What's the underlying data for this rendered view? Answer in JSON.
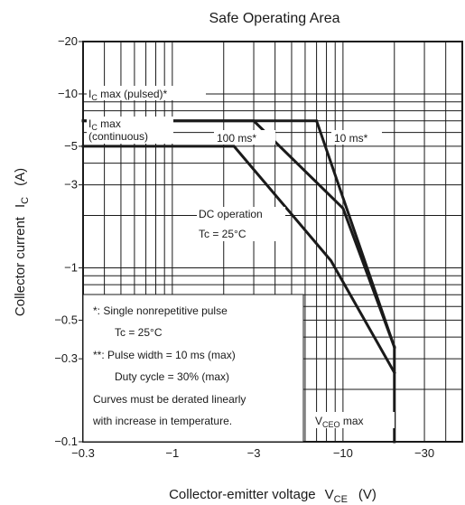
{
  "chart_data": {
    "type": "line",
    "title": "Safe Operating Area",
    "xlabel": "Collector-emitter voltage",
    "xlabel_symbol_main": "V",
    "xlabel_symbol_sub": "CE",
    "xlabel_unit": "(V)",
    "ylabel": "Collector current",
    "ylabel_symbol_main": "I",
    "ylabel_symbol_sub": "C",
    "ylabel_unit": "(A)",
    "x_scale": "log",
    "y_scale": "log",
    "xlim": [
      -0.3,
      -50
    ],
    "ylim": [
      -0.1,
      -20
    ],
    "grid": true,
    "x_ticks": [
      {
        "value": -0.3,
        "label": "−0.3"
      },
      {
        "value": -1,
        "label": "−1"
      },
      {
        "value": -3,
        "label": "−3"
      },
      {
        "value": -10,
        "label": "−10"
      },
      {
        "value": -30,
        "label": "−30"
      }
    ],
    "y_ticks": [
      {
        "value": -20,
        "label": "−20"
      },
      {
        "value": -10,
        "label": "−10"
      },
      {
        "value": -5,
        "label": "−5"
      },
      {
        "value": -3,
        "label": "−3"
      },
      {
        "value": -1,
        "label": "−1"
      },
      {
        "value": -0.5,
        "label": "−0.5"
      },
      {
        "value": -0.3,
        "label": "−0.3"
      },
      {
        "value": -0.1,
        "label": "−0.1"
      }
    ],
    "series": [
      {
        "name": "10 ms*",
        "points": [
          [
            -0.3,
            -7
          ],
          [
            -7,
            -7
          ],
          [
            -20,
            -0.35
          ]
        ]
      },
      {
        "name": "100 ms*",
        "points": [
          [
            -0.3,
            -7
          ],
          [
            -3,
            -7
          ],
          [
            -10,
            -2.2
          ],
          [
            -20,
            -0.35
          ]
        ]
      },
      {
        "name": "DC operation",
        "points": [
          [
            -0.3,
            -5
          ],
          [
            -2.3,
            -5
          ],
          [
            -8.5,
            -1.1
          ],
          [
            -20,
            -0.25
          ]
        ]
      },
      {
        "name": "VCEO max",
        "points": [
          [
            -20,
            -0.35
          ],
          [
            -20,
            -0.1
          ]
        ]
      }
    ],
    "annotations": {
      "ic_max_pulsed": {
        "main": "I",
        "sub": "C",
        "rest": " max (pulsed)*"
      },
      "ic_max_cont_line1": {
        "main": "I",
        "sub": "C",
        "rest": " max"
      },
      "ic_max_cont_line2": "(continuous)",
      "label_100ms": "100 ms*",
      "label_10ms": "10 ms*",
      "dc_line1": "DC operation",
      "dc_line2": "Tc = 25°C",
      "vceo": {
        "main": "V",
        "sub": "CEO",
        "rest": " max"
      }
    },
    "notes": [
      "*: Single nonrepetitive pulse",
      "Tc = 25°C",
      "**: Pulse width = 10 ms (max)",
      "Duty cycle = 30% (max)",
      "Curves must be derated linearly",
      "with increase in temperature."
    ]
  }
}
